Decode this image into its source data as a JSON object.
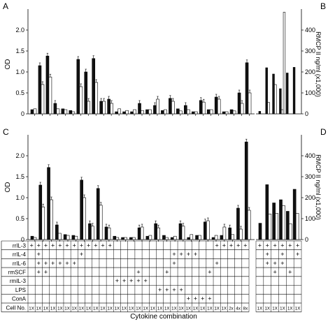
{
  "chart_data": [
    {
      "panel": "A",
      "type": "bar",
      "ylabel": "OD",
      "ylim": [
        0,
        2.5
      ],
      "yticks": [
        "0",
        "0.5",
        "1.0",
        "1.5",
        "2.0"
      ],
      "series": [
        {
          "name": "",
          "values": [
            0.1,
            1.15,
            1.38,
            0.25,
            0.12,
            0.08,
            1.3,
            1.0,
            1.32,
            0.3,
            0.35,
            0.05,
            0.05,
            0.05,
            0.25,
            0.1,
            0.2,
            0.08,
            0.37,
            0.12,
            0.2,
            0.05,
            0.32,
            0.1,
            0.4,
            0.05,
            0.1,
            0.5,
            1.22
          ]
        },
        {
          "name": "",
          "values": [
            0.12,
            0.7,
            0.88,
            0.12,
            0.1,
            0.05,
            0.65,
            0.3,
            0.75,
            0.3,
            0.25,
            0.12,
            0.08,
            0.1,
            0.08,
            0.1,
            0.35,
            0.1,
            0.3,
            0.07,
            0.1,
            0.05,
            0.28,
            0.1,
            0.35,
            0.05,
            0.07,
            0.25,
            0.5
          ]
        }
      ]
    },
    {
      "panel": "B",
      "type": "bar",
      "ylabel": "RMCP II ng/ml (x1,000)",
      "ylim": [
        0,
        500
      ],
      "yticks": [
        "0",
        "100",
        "200",
        "300",
        "400"
      ],
      "series": [
        {
          "name": "",
          "values": [
            12,
            220,
            190,
            120,
            195,
            222
          ]
        },
        {
          "name": "",
          "values": [
            0,
            55,
            140,
            20,
            0,
            0
          ]
        },
        {
          "name": "",
          "values": [
            0,
            0,
            0,
            485,
            0,
            0
          ]
        }
      ]
    },
    {
      "panel": "C",
      "type": "bar",
      "ylabel": "OD",
      "ylim": [
        0,
        2.5
      ],
      "yticks": [
        "0",
        "0.5",
        "1.0",
        "1.5",
        "2.0"
      ],
      "series": [
        {
          "name": "",
          "values": [
            0.08,
            1.3,
            1.72,
            0.35,
            0.12,
            0.1,
            1.42,
            0.38,
            1.22,
            0.3,
            0.08,
            0.05,
            0.05,
            0.28,
            0.08,
            0.38,
            0.1,
            0.05,
            0.38,
            0.05,
            0.1,
            0.42,
            0.05,
            0.1,
            0.28,
            0.75,
            2.33
          ]
        },
        {
          "name": "",
          "values": [
            0.05,
            0.78,
            0.95,
            0.15,
            0.1,
            0.08,
            1.0,
            0.32,
            0.82,
            0.28,
            0.05,
            0.05,
            0.05,
            0.3,
            0.1,
            0.28,
            0.05,
            0.08,
            0.32,
            0.12,
            0.1,
            0.45,
            0.1,
            0.3,
            0.12,
            0.25,
            0.7
          ]
        }
      ]
    },
    {
      "panel": "D",
      "type": "bar",
      "ylabel": "RMCP II ng/ml (x1,000)",
      "ylim": [
        0,
        500
      ],
      "yticks": [
        "0",
        "100",
        "200",
        "300",
        "400"
      ],
      "series": [
        {
          "name": "",
          "values": [
            78,
            262,
            175,
            190,
            135,
            240
          ]
        },
        {
          "name": "",
          "values": [
            0,
            122,
            125,
            162,
            75,
            125
          ]
        }
      ]
    }
  ],
  "panel_labels": {
    "A": "A",
    "B": "B",
    "C": "C",
    "D": "D"
  },
  "axis_labels": {
    "od": "OD",
    "rmcp": "RMCP II ng/ml (x1,000)"
  },
  "xlabel": "Cytokine combination",
  "table": {
    "rows": [
      {
        "label": "rrIL-3",
        "marks_main": [
          1,
          1,
          1,
          1,
          1,
          1,
          1,
          1,
          1,
          1,
          1,
          1,
          0,
          0,
          0,
          0,
          0,
          0,
          0,
          0,
          0,
          0,
          0,
          0,
          0,
          0,
          1,
          1,
          1,
          1,
          1
        ],
        "marks_right": [
          1,
          1,
          1,
          1,
          1,
          1
        ]
      },
      {
        "label": "rrIL-4",
        "marks_main": [
          0,
          1,
          0,
          0,
          0,
          0,
          0,
          1,
          0,
          0,
          0,
          0,
          0,
          0,
          0,
          0,
          0,
          0,
          0,
          0,
          1,
          1,
          1,
          1,
          0,
          0,
          0,
          0,
          0,
          0,
          0
        ],
        "marks_right": [
          0,
          1,
          0,
          1,
          0,
          1
        ]
      },
      {
        "label": "rrIL-6",
        "marks_main": [
          0,
          1,
          1,
          1,
          1,
          1,
          1,
          0,
          0,
          0,
          0,
          0,
          0,
          0,
          0,
          0,
          0,
          0,
          0,
          0,
          1,
          0,
          0,
          0,
          0,
          0,
          1,
          0,
          0,
          0,
          0
        ],
        "marks_right": [
          0,
          1,
          1,
          1,
          0,
          0
        ]
      },
      {
        "label": "rmSCF",
        "marks_main": [
          0,
          1,
          1,
          0,
          0,
          0,
          0,
          0,
          0,
          0,
          0,
          0,
          0,
          0,
          0,
          1,
          0,
          0,
          0,
          1,
          0,
          0,
          0,
          0,
          0,
          1,
          0,
          0,
          0,
          0,
          0
        ],
        "marks_right": [
          0,
          0,
          1,
          0,
          1,
          0
        ]
      },
      {
        "label": "rmIL-3",
        "marks_main": [
          0,
          0,
          0,
          0,
          0,
          0,
          0,
          0,
          0,
          0,
          0,
          0,
          1,
          1,
          1,
          1,
          1,
          0,
          0,
          0,
          0,
          0,
          0,
          0,
          0,
          0,
          0,
          0,
          0,
          0,
          0
        ],
        "marks_right": [
          0,
          0,
          0,
          0,
          0,
          0
        ]
      },
      {
        "label": "LPS",
        "marks_main": [
          0,
          0,
          0,
          0,
          0,
          0,
          0,
          0,
          0,
          0,
          0,
          0,
          0,
          0,
          0,
          0,
          0,
          0,
          1,
          1,
          1,
          1,
          0,
          0,
          0,
          0,
          0,
          0,
          0,
          0,
          0
        ],
        "marks_right": [
          0,
          0,
          0,
          0,
          0,
          0
        ]
      },
      {
        "label": "ConA",
        "marks_main": [
          0,
          0,
          0,
          0,
          0,
          0,
          0,
          0,
          0,
          0,
          0,
          0,
          0,
          0,
          0,
          0,
          0,
          0,
          0,
          0,
          0,
          0,
          1,
          1,
          1,
          1,
          0,
          0,
          0,
          0,
          0
        ],
        "marks_right": [
          0,
          0,
          0,
          0,
          0,
          0
        ]
      }
    ],
    "cell_row_label": "Cell No.",
    "cell_main": [
      "1X",
      "1X",
      "1X",
      "1X",
      "1X",
      "1X",
      "1X",
      "1X",
      "1X",
      "1X",
      "1X",
      "1X",
      "1X",
      "1X",
      "1X",
      "1X",
      "1X",
      "1X",
      "1X",
      "1X",
      "1X",
      "1X",
      "1X",
      "1X",
      "1X",
      "1X",
      "1X",
      "1X",
      "2x",
      "4x",
      "8x"
    ],
    "cell_right": [
      "1X",
      "1X",
      "1X",
      "1X",
      "1X",
      "1X"
    ]
  }
}
